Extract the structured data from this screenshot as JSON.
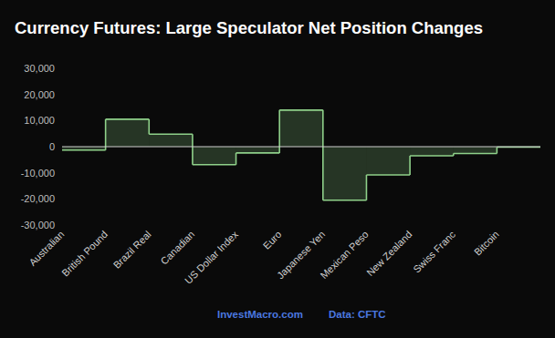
{
  "chart_data": {
    "type": "area",
    "title": "Currency Futures: Large Speculator Net Position Changes",
    "categories": [
      "Australian",
      "British Pound",
      "Brazil Real",
      "Canadian",
      "US Dollar Index",
      "Euro",
      "Japanese Yen",
      "Mexican Peso",
      "New Zealand",
      "Swiss Franc",
      "Bitcoin"
    ],
    "values": [
      -1300,
      10500,
      4800,
      -6900,
      -2400,
      14000,
      -20500,
      -10800,
      -3500,
      -2600,
      -200
    ],
    "color": "#8fd18a",
    "line_style": "step",
    "grid": false,
    "ylim": [
      -30000,
      30000
    ],
    "yticks": [
      {
        "value": -30000,
        "label": "-30,000"
      },
      {
        "value": -20000,
        "label": "-20,000"
      },
      {
        "value": -10000,
        "label": "-10,000"
      },
      0,
      {
        "value": 10000,
        "label": "10,000"
      },
      {
        "value": 20000,
        "label": "20,000"
      },
      {
        "value": 30000,
        "label": "30,000"
      }
    ],
    "annotations": [
      "InvestMacro.com",
      "Data: CFTC"
    ]
  }
}
